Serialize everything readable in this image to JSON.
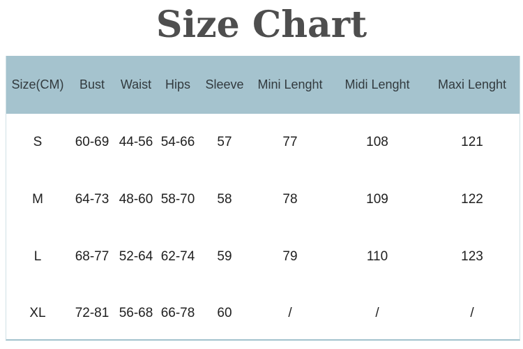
{
  "title": {
    "text": "Size Chart"
  },
  "chart_data": {
    "type": "table",
    "title": "Size Chart",
    "columns": [
      "Size(CM)",
      "Bust",
      "Waist",
      "Hips",
      "Sleeve",
      "Mini Lenght",
      "Midi Lenght",
      "Maxi Lenght"
    ],
    "rows": [
      [
        "S",
        "60-69",
        "44-56",
        "54-66",
        "57",
        "77",
        "108",
        "121"
      ],
      [
        "M",
        "64-73",
        "48-60",
        "58-70",
        "58",
        "78",
        "109",
        "122"
      ],
      [
        "L",
        "68-77",
        "52-64",
        "62-74",
        "59",
        "79",
        "110",
        "123"
      ],
      [
        "XL",
        "72-81",
        "56-68",
        "66-78",
        "60",
        "/",
        "/",
        "/"
      ]
    ],
    "units": "CM",
    "grid": "none",
    "legend": "none"
  },
  "colors": {
    "header_bg": "#a5c3ce",
    "title_text": "#4e4e4e",
    "header_text": "#323a3e",
    "cell_text": "#202020",
    "side_border": "#cfe0e5",
    "bottom_border": "#a3c2cd",
    "page_bg": "#ffffff"
  }
}
